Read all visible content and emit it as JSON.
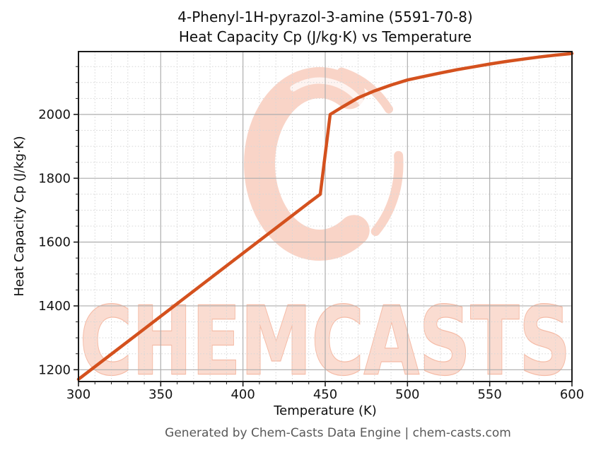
{
  "chart": {
    "title_line1": "4-Phenyl-1H-pyrazol-3-amine (5591-70-8)",
    "title_line2": "Heat Capacity Cp (J/kg·K) vs Temperature",
    "xlabel": "Temperature (K)",
    "ylabel": "Heat Capacity Cp (J/kg·K)",
    "footer": "Generated by Chem-Casts Data Engine | chem-casts.com",
    "watermark_text": "CHEMCASTS"
  },
  "chart_data": {
    "type": "line",
    "title": "4-Phenyl-1H-pyrazol-3-amine (5591-70-8) Heat Capacity Cp (J/kg·K) vs Temperature",
    "xlabel": "Temperature (K)",
    "ylabel": "Heat Capacity Cp (J/kg·K)",
    "x": [
      300,
      320,
      340,
      360,
      380,
      400,
      420,
      440,
      447,
      453,
      460,
      470,
      480,
      490,
      500,
      510,
      520,
      530,
      540,
      550,
      560,
      570,
      580,
      590,
      600
    ],
    "y": [
      1170,
      1249,
      1328,
      1407,
      1486,
      1565,
      1644,
      1723,
      1750,
      2000,
      2022,
      2052,
      2074,
      2092,
      2108,
      2119,
      2130,
      2140,
      2149,
      2158,
      2166,
      2173,
      2180,
      2186,
      2191
    ],
    "note_transition": "solid-liquid step: Cp jumps from ~1750 at 447 K to ~2000 at 453 K",
    "xlim": [
      300,
      600
    ],
    "ylim": [
      1163,
      2197
    ],
    "x_ticks_major": [
      300,
      350,
      400,
      450,
      500,
      550,
      600
    ],
    "y_ticks_major": [
      1200,
      1400,
      1600,
      1800,
      2000
    ],
    "x_minor_step": 10,
    "y_minor_step": 50,
    "grid": "major solid + minor dashed",
    "legend": "none",
    "line_width": 4.5
  },
  "colors": {
    "line": "#d4511e",
    "grid_major": "#aeaeae",
    "grid_minor": "#d7d7d7",
    "spine": "#1a1a1a",
    "tick_text": "#141414",
    "footer_text": "#585858",
    "watermark_fill": "#fadcd1",
    "watermark_stroke": "#f5bba6",
    "watermark_logo": "#f9d4c7"
  }
}
